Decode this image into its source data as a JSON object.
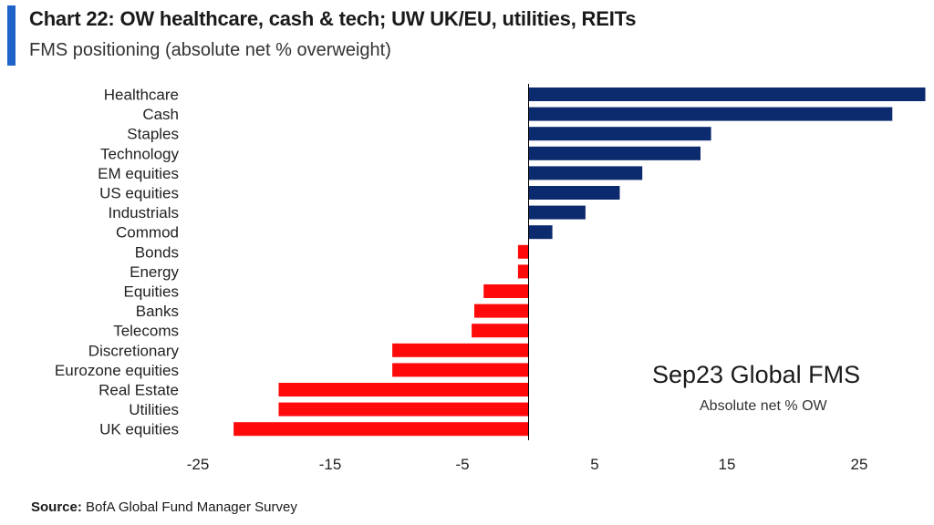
{
  "header": {
    "title": "Chart 22: OW healthcare, cash & tech; UW UK/EU, utilities, REITs",
    "subtitle": "FMS positioning (absolute net % overweight)"
  },
  "annotation": {
    "main": "Sep23 Global FMS",
    "sub": "Absolute net % OW"
  },
  "source": {
    "label": "Source:",
    "text": "BofA Global Fund Manager Survey"
  },
  "colors": {
    "positive": "#0c2a6e",
    "negative": "#ff0a0a",
    "accent": "#1f62c9"
  },
  "chart_data": {
    "type": "bar",
    "orientation": "horizontal",
    "categories": [
      "Healthcare",
      "Cash",
      "Staples",
      "Technology",
      "EM equities",
      "US equities",
      "Industrials",
      "Commod",
      "Bonds",
      "Energy",
      "Equities",
      "Banks",
      "Telecoms",
      "Discretionary",
      "Eurozone equities",
      "Real Estate",
      "Utilities",
      "UK equities"
    ],
    "values": [
      30,
      27.5,
      13.8,
      13,
      8.6,
      6.9,
      4.3,
      1.8,
      -0.8,
      -0.8,
      -3.4,
      -4.1,
      -4.3,
      -10.3,
      -10.3,
      -18.9,
      -18.9,
      -22.3
    ],
    "xlim": [
      -25,
      30
    ],
    "xticks": [
      -25,
      -15,
      -5,
      5,
      15,
      25
    ],
    "grid": false,
    "legend": "none"
  }
}
